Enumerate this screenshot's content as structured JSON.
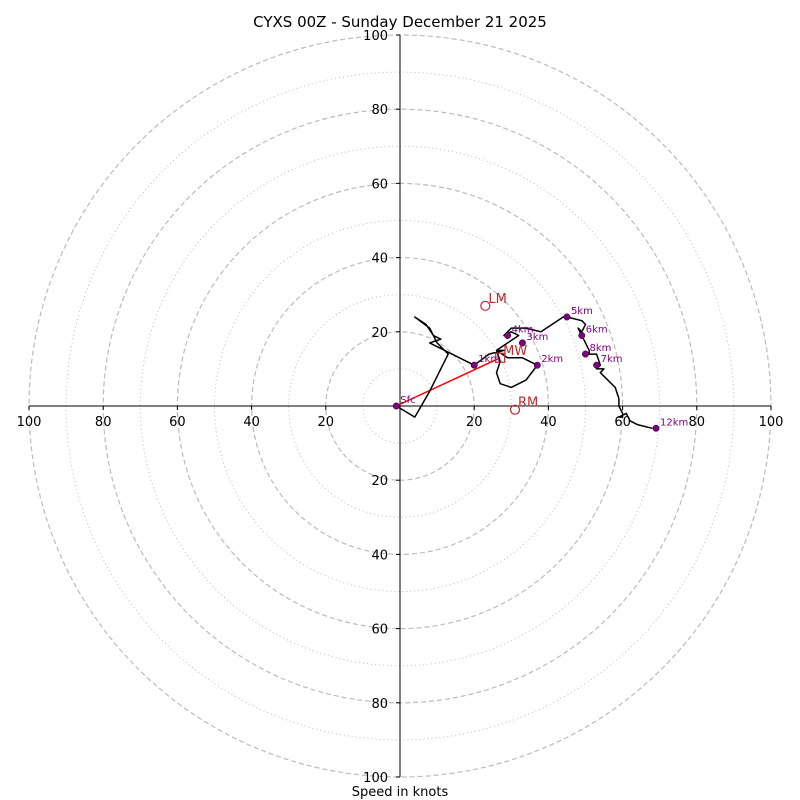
{
  "chart_data": {
    "type": "hodograph",
    "title": "CYXS 00Z - Sunday December 21 2025",
    "xlabel": "Speed in knots",
    "xlim": [
      -100,
      100
    ],
    "ylim": [
      -100,
      100
    ],
    "rings_major": [
      20,
      40,
      60,
      80,
      100
    ],
    "rings_minor": [
      10,
      30,
      50,
      70,
      90
    ],
    "axis_ticks": {
      "x_left": [
        "100",
        "80",
        "60",
        "40",
        "20"
      ],
      "x_right": [
        "20",
        "40",
        "60",
        "80",
        "100"
      ],
      "y_top": [
        "20",
        "40",
        "60",
        "80",
        "100"
      ],
      "y_bottom": [
        "20",
        "40",
        "60",
        "80",
        "100"
      ],
      "x_left_values": [
        -100,
        -80,
        -60,
        -40,
        -20
      ],
      "x_right_values": [
        20,
        40,
        60,
        80,
        100
      ],
      "y_top_values": [
        20,
        40,
        60,
        80,
        100
      ],
      "y_bottom_values": [
        -20,
        -40,
        -60,
        -80,
        -100
      ]
    },
    "trace": {
      "name": "wind profile",
      "color": "#000000",
      "points": [
        [
          -1,
          0
        ],
        [
          4,
          -3
        ],
        [
          8,
          4
        ],
        [
          13,
          14
        ],
        [
          10,
          17
        ],
        [
          8,
          21
        ],
        [
          4,
          24
        ],
        [
          7,
          22
        ],
        [
          9,
          19
        ],
        [
          11,
          18
        ],
        [
          8,
          17
        ],
        [
          14,
          14
        ],
        [
          20,
          11
        ],
        [
          24,
          14
        ],
        [
          28,
          15
        ],
        [
          26,
          15
        ],
        [
          29,
          13
        ],
        [
          33,
          13
        ],
        [
          37,
          11
        ],
        [
          34,
          7
        ],
        [
          30,
          5
        ],
        [
          27,
          6
        ],
        [
          26,
          9
        ],
        [
          27,
          12
        ],
        [
          26,
          15
        ],
        [
          29,
          17
        ],
        [
          32,
          19
        ],
        [
          30,
          20
        ],
        [
          28,
          19
        ],
        [
          30,
          21
        ],
        [
          34,
          21
        ],
        [
          38,
          20
        ],
        [
          41,
          22
        ],
        [
          44,
          24
        ],
        [
          45,
          24
        ],
        [
          49,
          23
        ],
        [
          50,
          22
        ],
        [
          49,
          20
        ],
        [
          48,
          21
        ],
        [
          49,
          19
        ],
        [
          50,
          17
        ],
        [
          51,
          15
        ],
        [
          51,
          14
        ],
        [
          52,
          14
        ],
        [
          53,
          14
        ],
        [
          54,
          11
        ],
        [
          53,
          10
        ],
        [
          55,
          10
        ],
        [
          54,
          9
        ],
        [
          55,
          8
        ],
        [
          58,
          5
        ],
        [
          59,
          2
        ],
        [
          59,
          0
        ],
        [
          60,
          -2
        ],
        [
          60,
          -3
        ],
        [
          59,
          -3
        ],
        [
          61,
          -2
        ],
        [
          62,
          -4
        ],
        [
          64,
          -5
        ],
        [
          68,
          -6
        ]
      ]
    },
    "height_markers": [
      {
        "label": "Sfc",
        "u": -1,
        "v": 0
      },
      {
        "label": "1km",
        "u": 20,
        "v": 11
      },
      {
        "label": "2km",
        "u": 37,
        "v": 11
      },
      {
        "label": "3km",
        "u": 33,
        "v": 17
      },
      {
        "label": "4km",
        "u": 29,
        "v": 19
      },
      {
        "label": "5km",
        "u": 45,
        "v": 24
      },
      {
        "label": "6km",
        "u": 49,
        "v": 19
      },
      {
        "label": "7km",
        "u": 53,
        "v": 11
      },
      {
        "label": "8km",
        "u": 50,
        "v": 14
      },
      {
        "label": "12km",
        "u": 69,
        "v": -6
      }
    ],
    "mean_wind": {
      "label": "MW",
      "u": 27,
      "v": 13,
      "marker": "square"
    },
    "storm_motion": [
      {
        "label": "LM",
        "u": 23,
        "v": 27,
        "marker": "circle"
      },
      {
        "label": "RM",
        "u": 31,
        "v": -1,
        "marker": "circle"
      }
    ],
    "shear_vector": {
      "from": [
        -1,
        0
      ],
      "to": [
        27,
        13
      ],
      "color": "#ff0000"
    },
    "colors": {
      "trace": "#000000",
      "height_marker": "#800080",
      "storm_marker": "#c0282d",
      "shear": "#ff0000",
      "ring": "#bbbbbb",
      "axis": "#000000"
    }
  }
}
